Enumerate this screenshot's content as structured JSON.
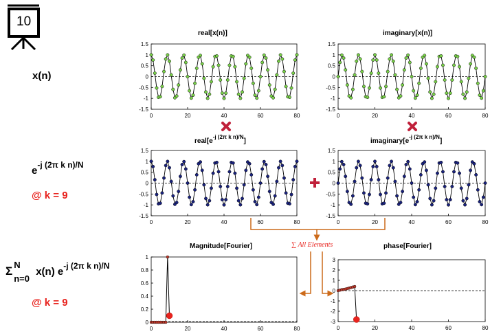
{
  "slide_number": "10",
  "labels": {
    "xn": "x(n)",
    "exp_base": "e",
    "exp_power": "-j (2π k n)/N",
    "at_k_1": "@ k = 9",
    "sum_sigma": "Σ",
    "sum_upper": "N",
    "sum_lower": "n=0",
    "sum_body": "x(n) e",
    "sum_power": "-j (2π k n)/N",
    "at_k_2": "@ k = 9",
    "sum_all": "∑ All Elements"
  },
  "colors": {
    "signal": "#7ad14a",
    "kernel": "#1a237e",
    "fourier": "#e8231e",
    "arrow": "#cc6a1a",
    "operator": "#c0203a"
  },
  "chart_data": [
    {
      "id": "real-xn",
      "type": "line",
      "title": "real[x(n)]",
      "xlim": [
        0,
        80
      ],
      "ylim": [
        -1.5,
        1.5
      ],
      "xticks": [
        "0",
        "20",
        "40",
        "60",
        "80"
      ],
      "yticks": [
        "1.5",
        "1",
        "0.5",
        "0",
        "-0.5",
        "-1",
        "-1.5"
      ],
      "series": [
        {
          "kind": "cos",
          "freq_cycles": 9,
          "N": 80,
          "n_max": 80,
          "amplitude": 1
        }
      ]
    },
    {
      "id": "imag-xn",
      "type": "line",
      "title": "imaginary[x(n)]",
      "xlim": [
        0,
        80
      ],
      "ylim": [
        -1.5,
        1.5
      ],
      "xticks": [
        "0",
        "20",
        "40",
        "60",
        "80"
      ],
      "yticks": [
        "1.5",
        "1",
        "0.5",
        "0",
        "-0.5",
        "-1",
        "-1.5"
      ],
      "series": [
        {
          "kind": "sin",
          "freq_cycles": 9,
          "N": 80,
          "n_max": 80,
          "amplitude": 1
        }
      ]
    },
    {
      "id": "real-exp",
      "type": "line",
      "title_main": "real[e",
      "title_power": "-j (2π k n)/N",
      "title_end": "]",
      "xlim": [
        0,
        80
      ],
      "ylim": [
        -1.5,
        1.5
      ],
      "xticks": [
        "0",
        "20",
        "40",
        "60",
        "80"
      ],
      "yticks": [
        "1.5",
        "1",
        "0.5",
        "0",
        "-0.5",
        "-1",
        "-1.5"
      ],
      "series": [
        {
          "kind": "cos",
          "freq_cycles": 9,
          "N": 80,
          "n_max": 80,
          "amplitude": 1
        }
      ]
    },
    {
      "id": "imag-exp",
      "type": "line",
      "title_main": "imaginary[e",
      "title_power": "-j (2π k n)/N",
      "title_end": "]",
      "xlim": [
        0,
        80
      ],
      "ylim": [
        -1.5,
        1.5
      ],
      "xticks": [
        "0",
        "20",
        "40",
        "60",
        "80"
      ],
      "yticks": [
        "1.5",
        "1",
        "0.5",
        "0",
        "-0.5",
        "-1",
        "-1.5"
      ],
      "series": [
        {
          "kind": "sin",
          "freq_cycles": 9,
          "N": 80,
          "n_max": 80,
          "amplitude": 1
        }
      ]
    },
    {
      "id": "magnitude",
      "type": "line",
      "title": "Magnitude[Fourier]",
      "xlim": [
        0,
        80
      ],
      "ylim": [
        0,
        1
      ],
      "xticks": [
        "0",
        "20",
        "40",
        "60",
        "80"
      ],
      "yticks": [
        "1",
        "0.8",
        "0.6",
        "0.4",
        "0.2",
        "0"
      ],
      "x": [
        0,
        1,
        2,
        3,
        4,
        5,
        6,
        7,
        8,
        9
      ],
      "y": [
        0,
        0,
        0,
        0,
        0,
        0,
        0,
        0,
        0,
        1
      ],
      "highlight": {
        "x": 10,
        "y": 0.1
      },
      "connector_to_highlight": true
    },
    {
      "id": "phase",
      "type": "line",
      "title": "phase[Fourier]",
      "xlim": [
        0,
        80
      ],
      "ylim": [
        -3,
        3
      ],
      "xticks": [
        "0",
        "20",
        "40",
        "60",
        "80"
      ],
      "yticks": [
        "3",
        "2",
        "1",
        "0",
        "-1",
        "-2",
        "-3"
      ],
      "x": [
        0,
        1,
        2,
        3,
        4,
        5,
        6,
        7,
        8,
        9
      ],
      "y": [
        0,
        0.05,
        0.1,
        0.12,
        0.15,
        0.2,
        0.25,
        0.3,
        0.35,
        0.4
      ],
      "highlight": {
        "x": 10,
        "y": -2.8
      },
      "connector_to_highlight": true
    }
  ]
}
